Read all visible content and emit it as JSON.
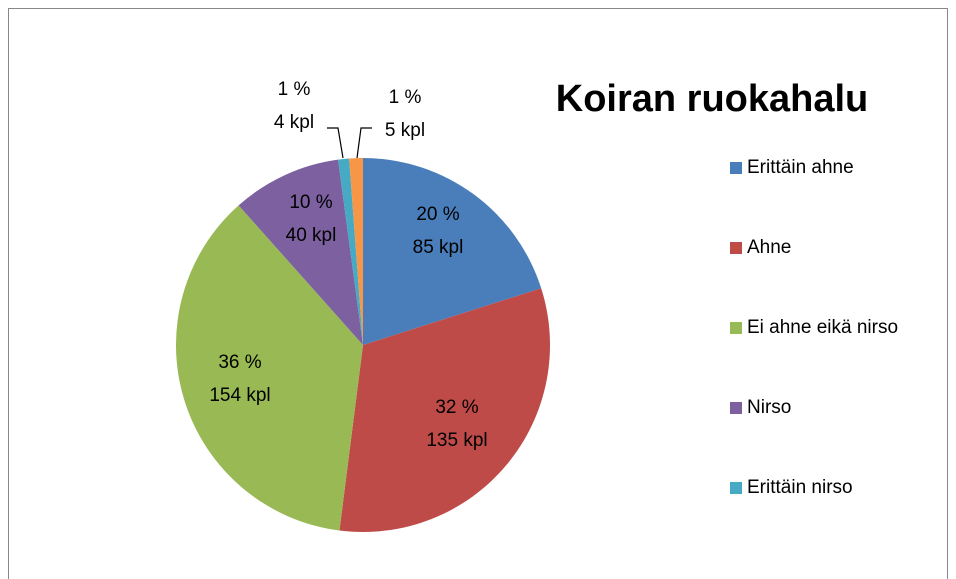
{
  "chart_data": {
    "type": "pie",
    "title": "Koiran ruokahalu",
    "series": [
      {
        "name": "Erittäin ahne",
        "color": "#4a7ebb"
      },
      {
        "name": "Ahne",
        "color": "#be4b48"
      },
      {
        "name": "Ei ahne eikä nirso",
        "color": "#98b954"
      },
      {
        "name": "Nirso",
        "color": "#7d60a0"
      },
      {
        "name": "Erittäin nirso",
        "color": "#46aac5"
      },
      {
        "name": null,
        "color": "#f79646"
      }
    ],
    "values": [
      85,
      135,
      154,
      40,
      4,
      5
    ],
    "value_labels": [
      "85 kpl",
      "135 kpl",
      "154 kpl",
      "40 kpl",
      "4 kpl",
      "5 kpl"
    ],
    "percentages": [
      20,
      32,
      36,
      10,
      1,
      1
    ],
    "percentage_labels": [
      "20 %",
      "32 %",
      "36 %",
      "10 %",
      "1 %",
      "1 %"
    ],
    "legend": "right"
  }
}
